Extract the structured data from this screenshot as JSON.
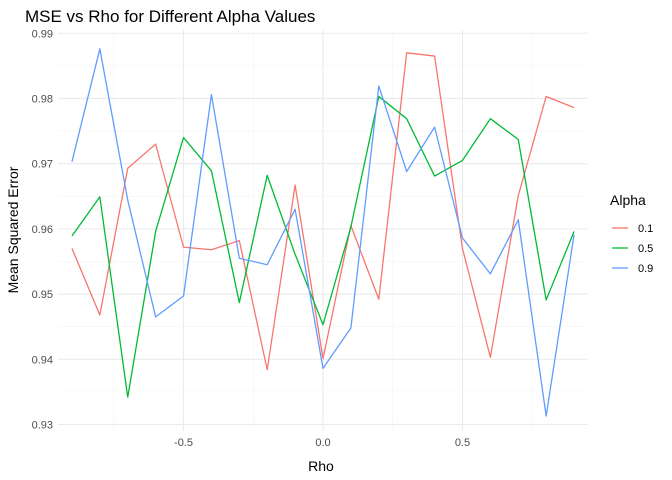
{
  "chart_data": {
    "type": "line",
    "title": "MSE vs Rho for Different Alpha Values",
    "xlabel": "Rho",
    "ylabel": "Mean Squared Error",
    "xlim": [
      -0.95,
      0.95
    ],
    "ylim": [
      0.929,
      0.9905
    ],
    "x_ticks": [
      -0.5,
      0.0,
      0.5
    ],
    "x_tick_labels": [
      "-0.5",
      "0.0",
      "0.5"
    ],
    "y_ticks": [
      0.93,
      0.94,
      0.95,
      0.96,
      0.97,
      0.98,
      0.99
    ],
    "y_tick_labels": [
      "0.93",
      "0.94",
      "0.95",
      "0.96",
      "0.97",
      "0.98",
      "0.99"
    ],
    "grid": true,
    "legend_title": "Alpha",
    "legend_position": "right",
    "x": [
      -0.9,
      -0.8,
      -0.7,
      -0.6,
      -0.5,
      -0.4,
      -0.3,
      -0.2,
      -0.1,
      0.0,
      0.1,
      0.2,
      0.3,
      0.4,
      0.5,
      0.6,
      0.7,
      0.8,
      0.9
    ],
    "series": [
      {
        "name": "0.1",
        "color": "#F8766D",
        "values": [
          0.957,
          0.9468,
          0.9693,
          0.973,
          0.9572,
          0.9568,
          0.9582,
          0.9384,
          0.9667,
          0.9401,
          0.9605,
          0.9492,
          0.987,
          0.9865,
          0.957,
          0.9403,
          0.9651,
          0.9803,
          0.9786
        ]
      },
      {
        "name": "0.5",
        "color": "#00BA38",
        "values": [
          0.9589,
          0.9649,
          0.9342,
          0.9596,
          0.974,
          0.9689,
          0.9487,
          0.9682,
          0.9561,
          0.9453,
          0.9603,
          0.9803,
          0.9769,
          0.9681,
          0.9705,
          0.9769,
          0.9737,
          0.9491,
          0.9596
        ]
      },
      {
        "name": "0.9",
        "color": "#619CFF",
        "values": [
          0.9703,
          0.9876,
          0.9644,
          0.9465,
          0.9497,
          0.9806,
          0.9555,
          0.9545,
          0.963,
          0.9386,
          0.9448,
          0.9819,
          0.9688,
          0.9756,
          0.9586,
          0.9531,
          0.9614,
          0.9313,
          0.9591
        ]
      }
    ]
  }
}
